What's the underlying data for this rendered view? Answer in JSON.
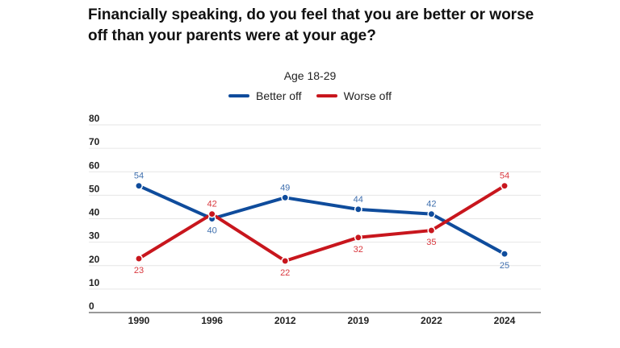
{
  "title": "Financially speaking, do you feel that you are better or worse off than your parents were at your age?",
  "chart_data": {
    "type": "line",
    "title": "Financially speaking, do you feel that you are better or worse off than your parents were at your age?",
    "subtitle": "Age 18-29",
    "xlabel": "",
    "ylabel": "",
    "categories": [
      "1990",
      "1996",
      "2012",
      "2019",
      "2022",
      "2024"
    ],
    "ylim": [
      0,
      80
    ],
    "yticks": [
      0,
      10,
      20,
      30,
      40,
      50,
      60,
      70,
      80
    ],
    "grid": true,
    "legend_position": "top-center",
    "series": [
      {
        "name": "Better off",
        "color": "#0f4c9c",
        "label_color": "#3f6fae",
        "values": [
          54,
          40,
          49,
          44,
          42,
          25
        ]
      },
      {
        "name": "Worse off",
        "color": "#c8161d",
        "label_color": "#d9393f",
        "values": [
          23,
          42,
          22,
          32,
          35,
          54
        ]
      }
    ]
  }
}
